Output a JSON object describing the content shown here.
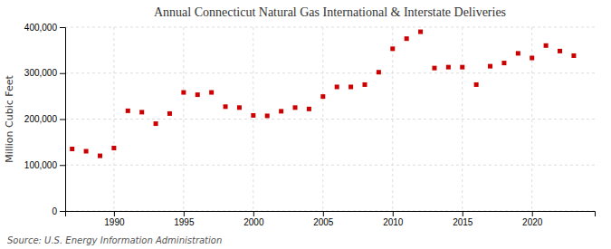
{
  "chart_data": {
    "type": "scatter",
    "title": "Annual Connecticut Natural Gas International & Interstate Deliveries",
    "ylabel": "Million Cubic Feet",
    "source": "Source: U.S. Energy Information Administration",
    "color": "#cc0000",
    "marker": "square",
    "x": [
      1987,
      1988,
      1989,
      1990,
      1991,
      1992,
      1993,
      1994,
      1995,
      1996,
      1997,
      1998,
      1999,
      2000,
      2001,
      2002,
      2003,
      2004,
      2005,
      2006,
      2007,
      2008,
      2009,
      2010,
      2011,
      2012,
      2013,
      2014,
      2015,
      2016,
      2017,
      2018,
      2019,
      2020,
      2021,
      2022,
      2023
    ],
    "values": [
      135000,
      130000,
      120000,
      137000,
      218000,
      215000,
      190000,
      212000,
      258000,
      253000,
      258000,
      227000,
      225000,
      208000,
      207000,
      217000,
      225000,
      222000,
      249000,
      270000,
      270000,
      275000,
      302000,
      353000,
      375000,
      390000,
      311000,
      313000,
      313000,
      275000,
      315000,
      322000,
      343000,
      333000,
      360000,
      348000,
      338000
    ],
    "xlim": [
      1986.5,
      2024.5
    ],
    "xticks": [
      1990,
      1995,
      2000,
      2005,
      2010,
      2015,
      2020
    ],
    "ylim": [
      0,
      400000
    ],
    "yticks": [
      0,
      {
        "value": 100000,
        "label": "100,000"
      },
      {
        "value": 200000,
        "label": "200,000"
      },
      {
        "value": 300000,
        "label": "300,000"
      },
      {
        "value": 400000,
        "label": "400,000"
      }
    ],
    "grid": true
  }
}
